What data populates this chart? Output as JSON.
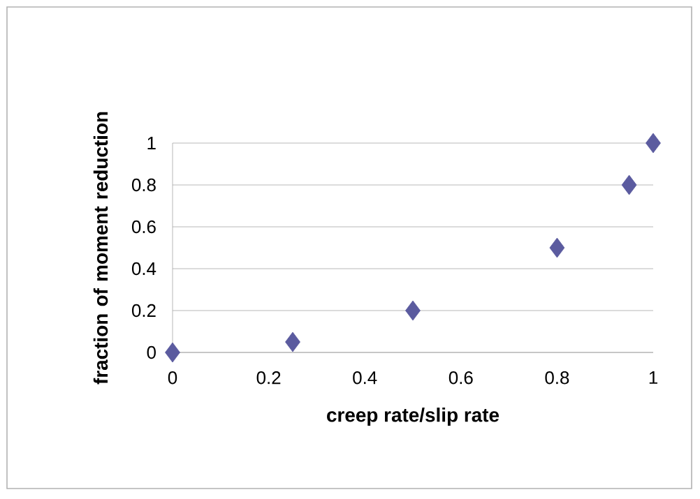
{
  "chart_data": {
    "type": "scatter",
    "xlabel": "creep rate/slip rate",
    "ylabel": "fraction of moment reduction",
    "x": [
      0,
      0.25,
      0.5,
      0.8,
      0.95,
      1
    ],
    "values": [
      0,
      0.05,
      0.2,
      0.5,
      0.8,
      1
    ],
    "color": "#5b5b9f",
    "marker": "diamond",
    "xlim": [
      0,
      1
    ],
    "xticks": [
      0,
      0.2,
      0.4,
      0.6,
      0.8,
      1
    ],
    "ylim": [
      0,
      1
    ],
    "yticks": [
      0,
      0.2,
      0.4,
      0.6,
      0.8,
      1
    ],
    "grid": "y"
  }
}
